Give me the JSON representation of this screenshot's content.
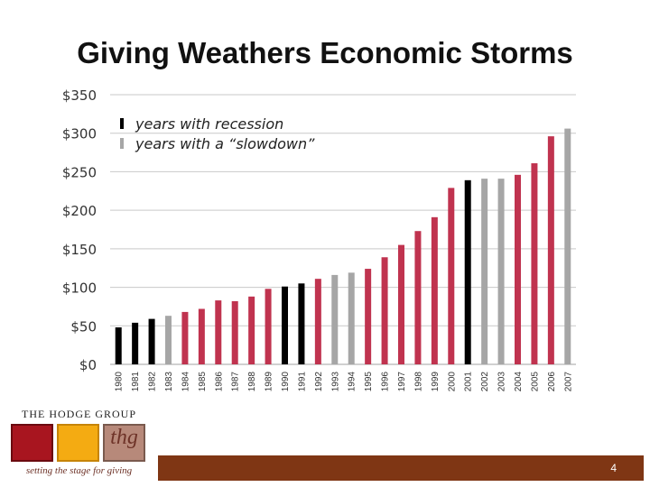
{
  "slide": {
    "title": "Giving Weathers Economic Storms",
    "page_number": "4"
  },
  "logo": {
    "name": "THE HODGE GROUP",
    "mark": "thg",
    "tagline": "setting the stage for giving"
  },
  "colors": {
    "recession": "#000000",
    "slowdown": "#a6a6a6",
    "normal": "#c0334f",
    "footer_bar": "#7f3614"
  },
  "chart_data": {
    "type": "bar",
    "title": "",
    "xlabel": "",
    "ylabel": "",
    "ylim": [
      0,
      350
    ],
    "yticks": [
      "$0",
      "$50",
      "$100",
      "$150",
      "$200",
      "$250",
      "$300",
      "$350"
    ],
    "grid": true,
    "legend_position": "top-left",
    "legend": [
      {
        "label": "years with recession",
        "key": "recession"
      },
      {
        "label": "years with a “slowdown”",
        "key": "slowdown"
      }
    ],
    "categories": [
      "1980",
      "1981",
      "1982",
      "1983",
      "1984",
      "1985",
      "1986",
      "1987",
      "1988",
      "1989",
      "1990",
      "1991",
      "1992",
      "1993",
      "1994",
      "1995",
      "1996",
      "1997",
      "1998",
      "1999",
      "2000",
      "2001",
      "2002",
      "2003",
      "2004",
      "2005",
      "2006",
      "2007"
    ],
    "values": [
      48,
      54,
      59,
      63,
      68,
      72,
      83,
      82,
      88,
      98,
      101,
      105,
      111,
      116,
      119,
      124,
      139,
      155,
      173,
      191,
      229,
      239,
      241,
      241,
      246,
      261,
      296,
      306
    ],
    "year_type": [
      "recession",
      "recession",
      "recession",
      "slowdown",
      "normal",
      "normal",
      "normal",
      "normal",
      "normal",
      "normal",
      "recession",
      "recession",
      "normal",
      "slowdown",
      "slowdown",
      "normal",
      "normal",
      "normal",
      "normal",
      "normal",
      "normal",
      "recession",
      "slowdown",
      "slowdown",
      "normal",
      "normal",
      "normal",
      "slowdown"
    ]
  }
}
